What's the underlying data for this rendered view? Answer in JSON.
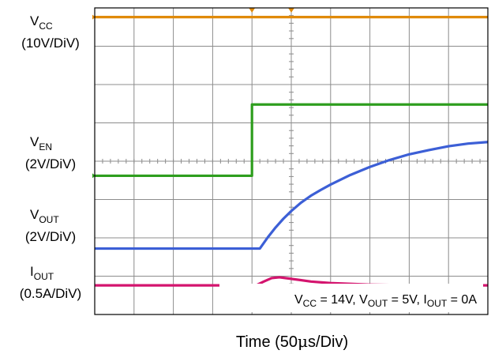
{
  "chart_data": {
    "type": "line",
    "x_divisions": 10,
    "y_divisions": 8,
    "grid": true,
    "xlabel": {
      "prefix": "Time (50",
      "mu": "μ",
      "suffix": "s/Div)"
    },
    "conditions": {
      "vcc": {
        "base": "V",
        "sub": "CC",
        "value": " = 14V, "
      },
      "vout": {
        "base": "V",
        "sub": "OUT",
        "value": " = 5V, "
      },
      "iout": {
        "base": "I",
        "sub": "OUT",
        "value": " = 0A"
      }
    },
    "series": [
      {
        "base": "V",
        "sub": "CC",
        "scale": "(10V/DiV)",
        "color": "#e08a0a",
        "x": [
          0,
          10
        ],
        "y": [
          7.76,
          7.76
        ]
      },
      {
        "base": "V",
        "sub": "EN",
        "scale": "(2V/DiV)",
        "color": "#2e9e1e",
        "x": [
          0,
          4.0,
          4.0,
          10
        ],
        "y": [
          3.62,
          3.62,
          5.48,
          5.48
        ]
      },
      {
        "base": "V",
        "sub": "OUT",
        "scale": "(2V/DiV)",
        "color": "#3c5fd6",
        "x": [
          0,
          4.2,
          4.4,
          4.6,
          4.8,
          5.0,
          5.25,
          5.5,
          5.75,
          6.0,
          6.5,
          7.0,
          7.5,
          8.0,
          8.5,
          9.0,
          9.5,
          10
        ],
        "y": [
          1.72,
          1.72,
          2.01,
          2.27,
          2.5,
          2.7,
          2.92,
          3.1,
          3.25,
          3.39,
          3.64,
          3.85,
          4.03,
          4.18,
          4.29,
          4.39,
          4.46,
          4.5
        ]
      },
      {
        "base": "I",
        "sub": "OUT",
        "scale": "(0.5A/DiV)",
        "color": "#d4146e",
        "x": [
          0,
          4.1,
          4.3,
          4.5,
          4.7,
          5.0,
          5.5,
          6.0,
          6.5,
          7.0,
          7.5,
          8.0,
          10
        ],
        "y": [
          0.76,
          0.76,
          0.86,
          0.95,
          0.97,
          0.93,
          0.86,
          0.82,
          0.8,
          0.78,
          0.77,
          0.76,
          0.76
        ]
      }
    ]
  }
}
